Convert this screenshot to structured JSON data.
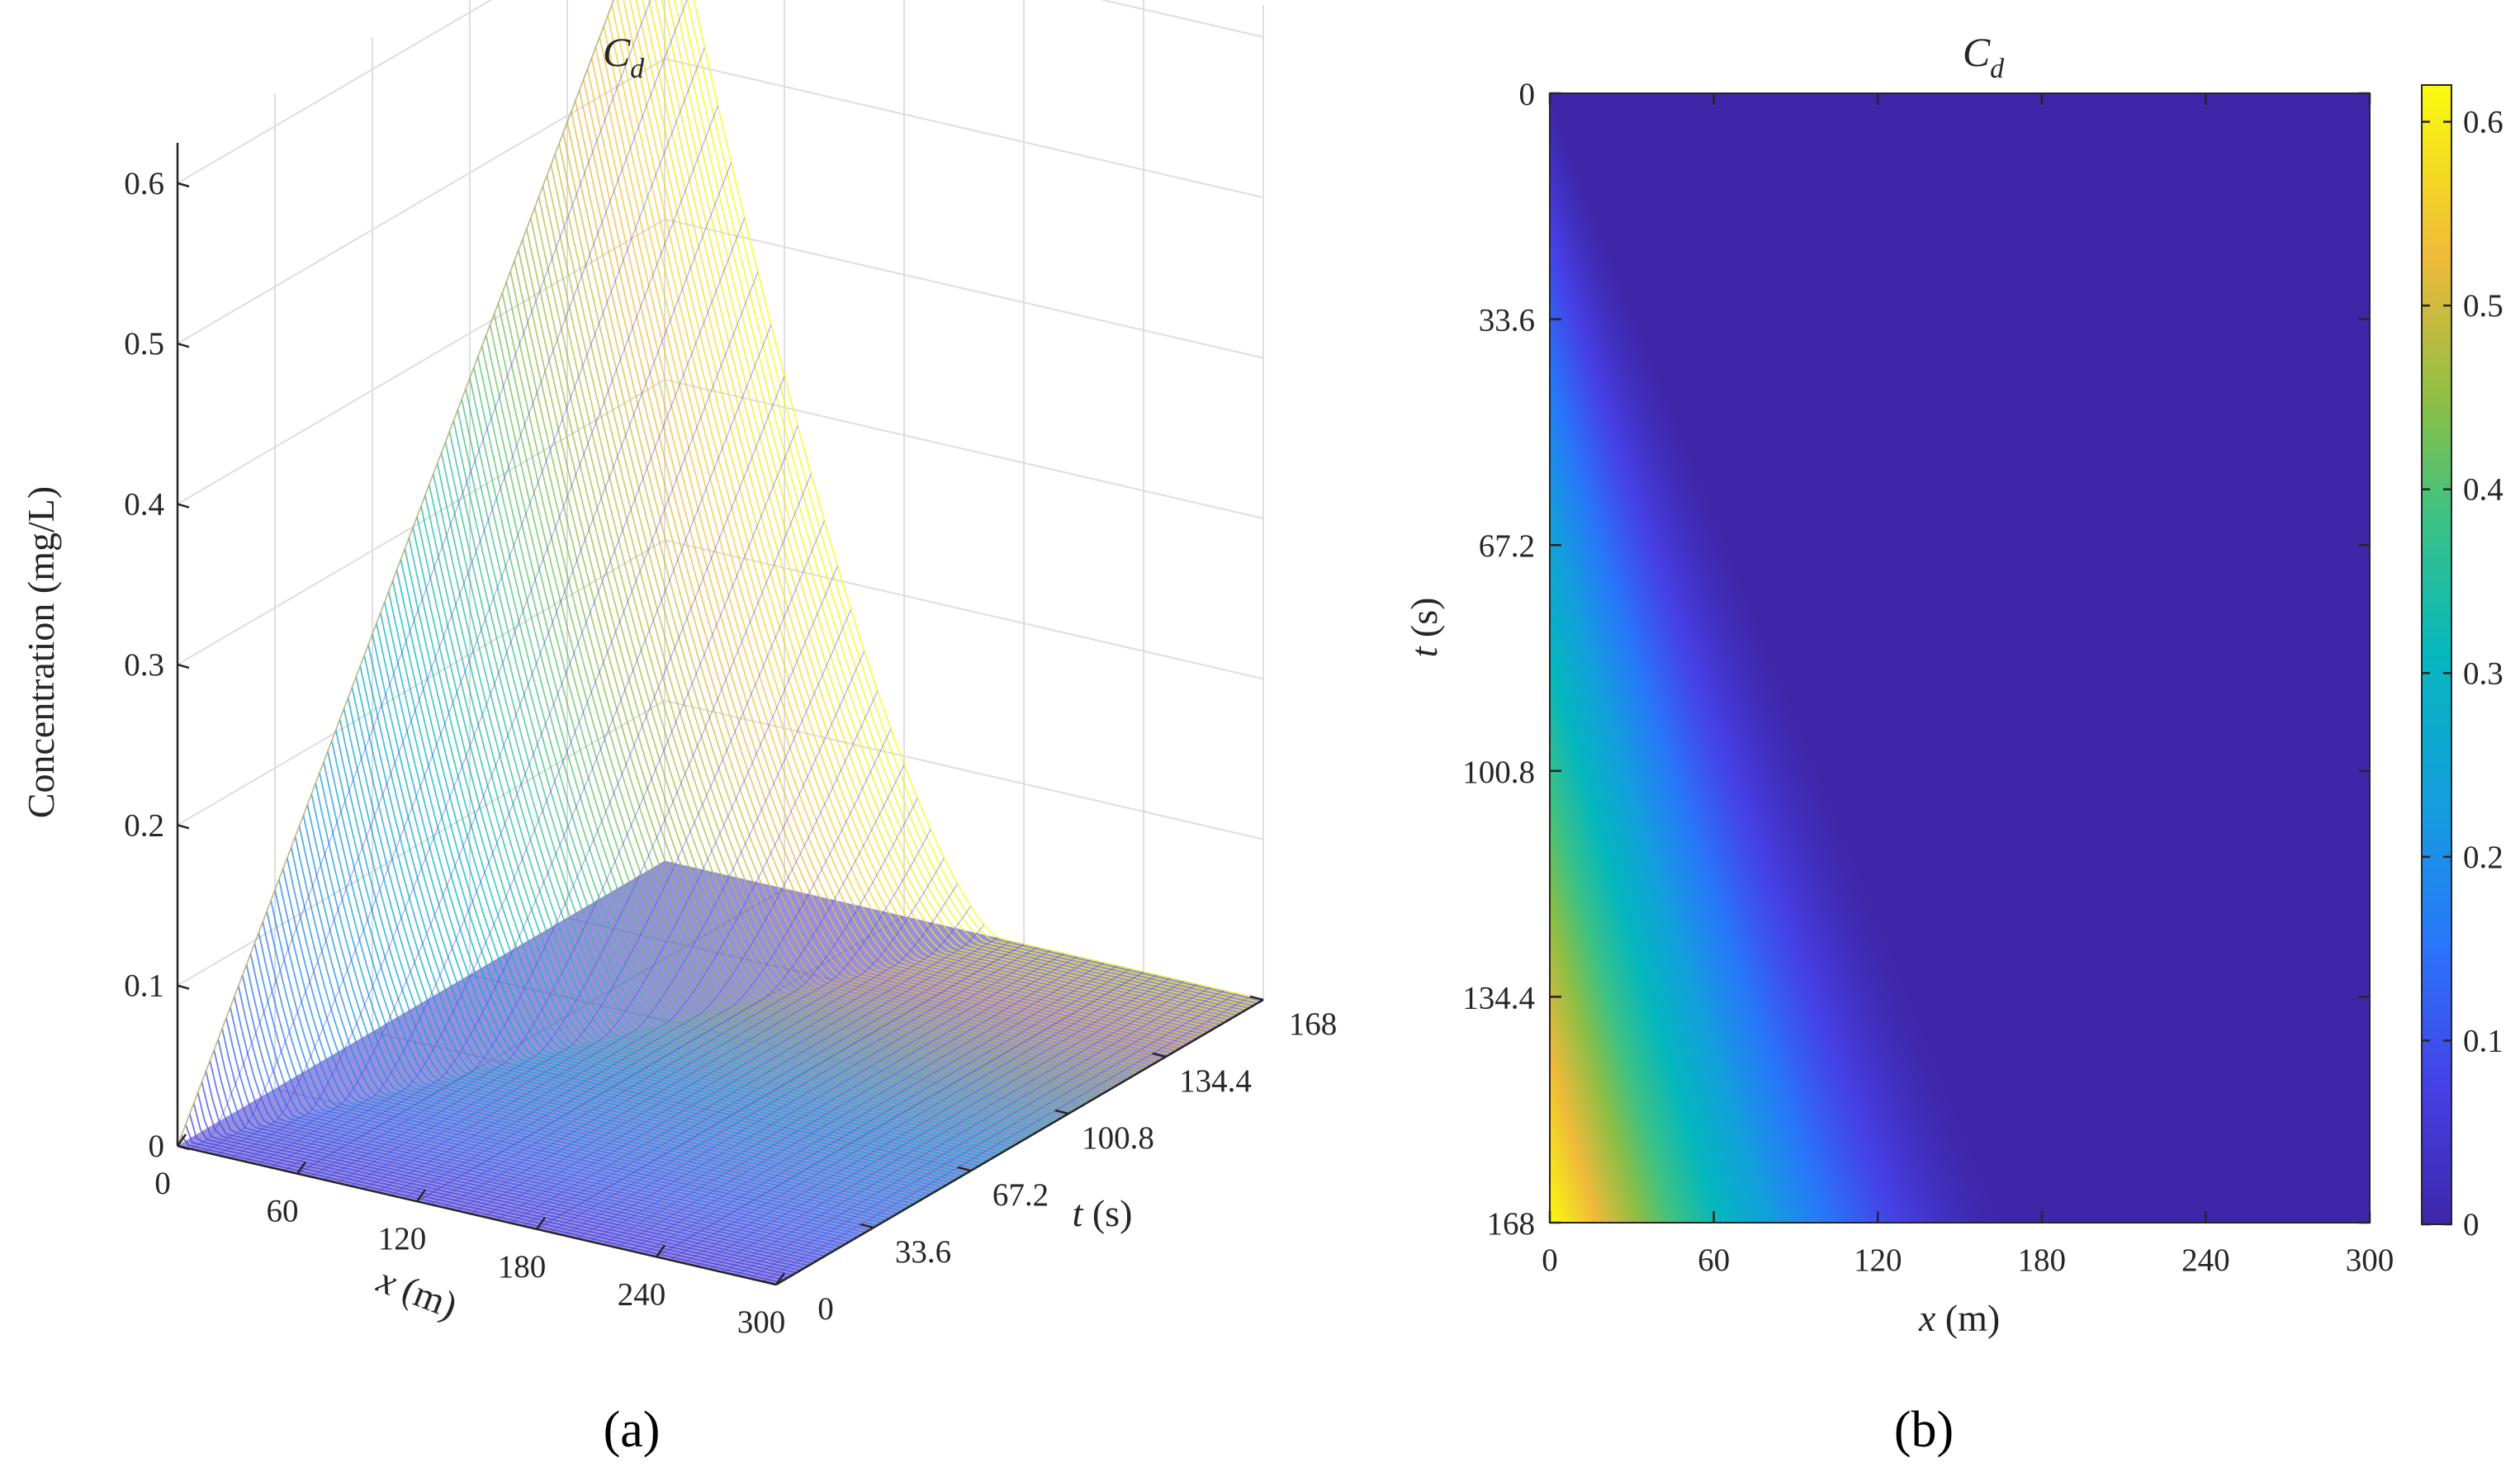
{
  "chart_data": [
    {
      "panel_label": "(a)",
      "type": "surface",
      "title": "C",
      "title_sub": "d",
      "xlabel": "x",
      "xunit": "(m)",
      "ylabel": "t",
      "yunit": "(s)",
      "zlabel": "Concentration (mg/L)",
      "x_ticks": [
        "0",
        "60",
        "120",
        "180",
        "240",
        "300"
      ],
      "t_ticks": [
        "0",
        "33.6",
        "67.2",
        "100.8",
        "134.4",
        "168"
      ],
      "z_ticks": [
        "0",
        "0.1",
        "0.2",
        "0.3",
        "0.4",
        "0.5",
        "0.6"
      ],
      "xlim": [
        0,
        300
      ],
      "tlim": [
        0,
        168
      ],
      "zlim": [
        0,
        0.62
      ],
      "peak": {
        "x": 0,
        "t": 168,
        "c": 0.62
      },
      "front_speed_m_per_s": 1.0,
      "grid": true,
      "colormap": "parula"
    },
    {
      "panel_label": "(b)",
      "type": "heatmap",
      "title": "C",
      "title_sub": "d",
      "xlabel": "x",
      "xunit": "(m)",
      "ylabel": "t",
      "yunit": "(s)",
      "x_ticks": [
        "0",
        "60",
        "120",
        "180",
        "240",
        "300"
      ],
      "y_ticks": [
        "0",
        "33.6",
        "67.2",
        "100.8",
        "134.4",
        "168"
      ],
      "xlim": [
        0,
        300
      ],
      "ylim": [
        0,
        168
      ],
      "y_direction": "reversed",
      "colorbar": {
        "ticks": [
          "0",
          "0.1",
          "0.2",
          "0.3",
          "0.4",
          "0.5",
          "0.6"
        ],
        "range": [
          0,
          0.62
        ],
        "placement": "right"
      },
      "colormap": "parula"
    }
  ]
}
